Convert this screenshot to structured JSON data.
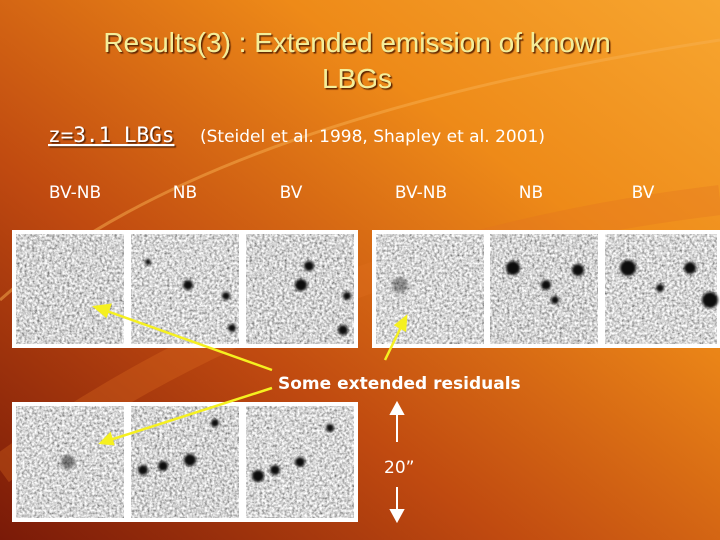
{
  "header": {
    "title": "Results(3) : Extended emission of known LBGs",
    "subtitle": "z=3.1 LBGs",
    "citation": "(Steidel et al. 1998, Shapley et al. 2001)"
  },
  "columns": [
    "BV-NB",
    "NB",
    "BV",
    "BV-NB",
    "NB",
    "BV"
  ],
  "annotation": "Some extended residuals",
  "scale_label": "20”"
}
